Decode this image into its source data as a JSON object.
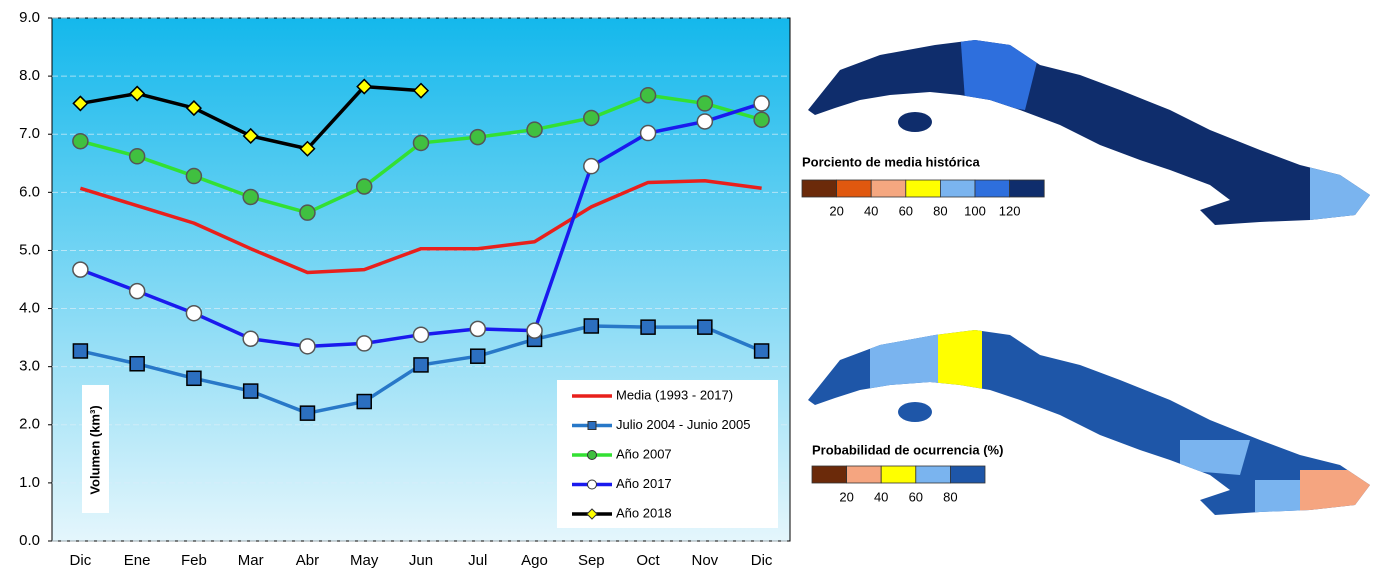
{
  "chart_data": {
    "type": "line",
    "categories": [
      "Dic",
      "Ene",
      "Feb",
      "Mar",
      "Abr",
      "May",
      "Jun",
      "Jul",
      "Ago",
      "Sep",
      "Oct",
      "Nov",
      "Dic"
    ],
    "y_label": "Volumen (km³)",
    "ylim": [
      0,
      9
    ],
    "yticks": [
      {
        "value": 0,
        "label": "0.0"
      },
      {
        "value": 1,
        "label": "1.0"
      },
      {
        "value": 2,
        "label": "2.0"
      },
      {
        "value": 3,
        "label": "3.0"
      },
      {
        "value": 4,
        "label": "4.0"
      },
      {
        "value": 5,
        "label": "5.0"
      },
      {
        "value": 6,
        "label": "6.0"
      },
      {
        "value": 7,
        "label": "7.0"
      },
      {
        "value": 8,
        "label": "8.0"
      },
      {
        "value": 9,
        "label": "9.0"
      }
    ],
    "grid": true,
    "legend": "lower right",
    "series": [
      {
        "name": "Media (1993 - 2017)",
        "color": "#e8201c",
        "marker": "none",
        "values": [
          6.07,
          5.77,
          5.47,
          5.03,
          4.62,
          4.67,
          5.03,
          5.03,
          5.15,
          5.75,
          6.17,
          6.2,
          6.07
        ]
      },
      {
        "name": "Julio 2004 - Junio 2005",
        "color": "#2878c8",
        "marker": "square",
        "marker_color": "#2c6fc0",
        "values": [
          3.27,
          3.05,
          2.8,
          2.58,
          2.2,
          2.4,
          3.03,
          3.18,
          3.47,
          3.7,
          3.68,
          3.68,
          3.27
        ]
      },
      {
        "name": "Año 2007",
        "color": "#33e033",
        "marker": "circle",
        "marker_color": "#40c040",
        "values": [
          6.88,
          6.62,
          6.28,
          5.92,
          5.65,
          6.1,
          6.85,
          6.95,
          7.08,
          7.28,
          7.67,
          7.53,
          7.25
        ]
      },
      {
        "name": "Año 2017",
        "color": "#1a1aee",
        "marker": "circle",
        "marker_color": "#ffffff",
        "values": [
          4.67,
          4.3,
          3.92,
          3.48,
          3.35,
          3.4,
          3.55,
          3.65,
          3.62,
          6.45,
          7.02,
          7.22,
          7.53
        ]
      },
      {
        "name": "Año 2018",
        "color": "#000000",
        "marker": "diamond",
        "marker_color": "#ffff00",
        "values": [
          7.53,
          7.7,
          7.45,
          6.97,
          6.75,
          7.82,
          7.75,
          null,
          null,
          null,
          null,
          null,
          null
        ]
      }
    ]
  },
  "maps": [
    {
      "title": "Porciento de media histórica",
      "colors": [
        "#6b2a0a",
        "#e0580f",
        "#f5a780",
        "#ffff00",
        "#7ab4ef",
        "#2e6fdd",
        "#0f2d6c"
      ],
      "labels": [
        20,
        40,
        60,
        80,
        100,
        120
      ]
    },
    {
      "title": "Probabilidad de ocurrencia (%)",
      "colors": [
        "#6b2a0a",
        "#f5a580",
        "#ffff00",
        "#7ab4ef",
        "#1e56a8"
      ],
      "labels": [
        20,
        40,
        60,
        80
      ]
    }
  ]
}
